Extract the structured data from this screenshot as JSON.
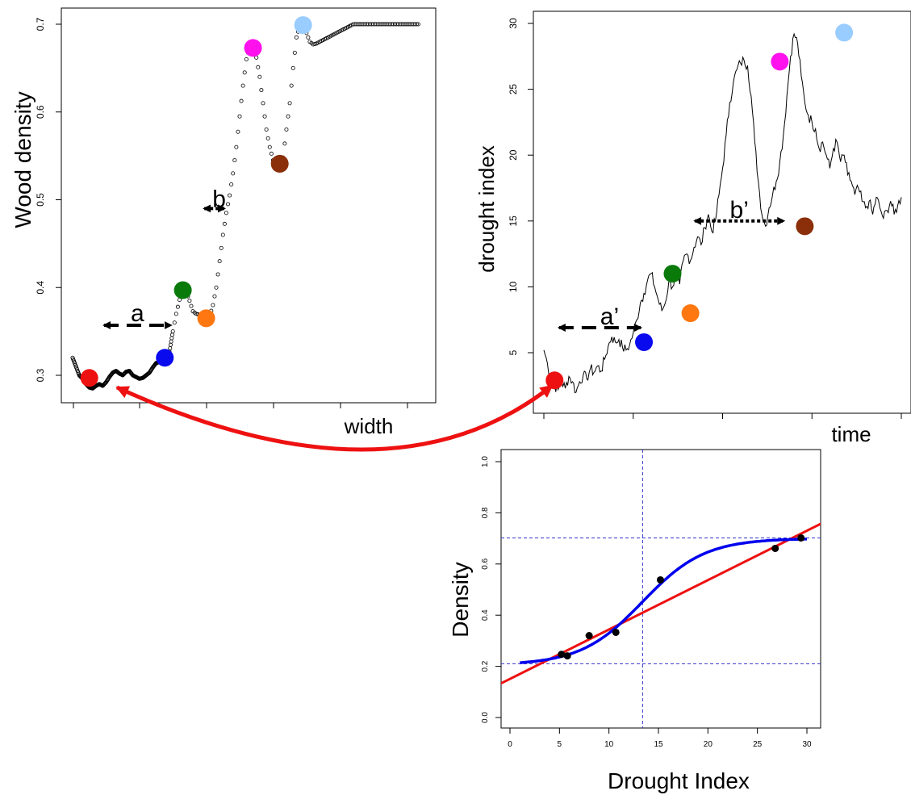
{
  "chart_data": [
    {
      "id": "wood",
      "type": "scatter",
      "ylabel": "Wood density",
      "xlabel": "width",
      "ylim": [
        0.265,
        0.715
      ],
      "yticks": [
        0.3,
        0.4,
        0.5,
        0.6,
        0.7
      ],
      "ytick_labels": [
        "0.3",
        "0.4",
        "0.5",
        "0.6",
        "0.7"
      ],
      "xlim": [
        0,
        100
      ],
      "xticks": [
        5,
        25,
        45,
        65,
        85,
        100
      ],
      "x": [
        0,
        1,
        2,
        3,
        4,
        5,
        6,
        7,
        8,
        9,
        10,
        11,
        12,
        13,
        14,
        15,
        16,
        17,
        18,
        19,
        20,
        21,
        22,
        23,
        24,
        25,
        26,
        27,
        28,
        29,
        30,
        31,
        32,
        33,
        34,
        35,
        36,
        37,
        38,
        39,
        40,
        41,
        42,
        43,
        44,
        45,
        46,
        47,
        48,
        49,
        50,
        51,
        52,
        53,
        54,
        55,
        56,
        57,
        58,
        59,
        60,
        61,
        62,
        63,
        64,
        65,
        66,
        67,
        68,
        69,
        70,
        71,
        72,
        73,
        74,
        75,
        76,
        77,
        78,
        79,
        80,
        81,
        82,
        83,
        84,
        85,
        86,
        87,
        88,
        89,
        90,
        91,
        92,
        93,
        94,
        95,
        96,
        97,
        98,
        99,
        100,
        101,
        102,
        103,
        104
      ],
      "y": [
        0.32,
        0.31,
        0.3,
        0.296,
        0.29,
        0.286,
        0.285,
        0.288,
        0.29,
        0.288,
        0.292,
        0.298,
        0.303,
        0.305,
        0.302,
        0.3,
        0.304,
        0.305,
        0.3,
        0.298,
        0.296,
        0.297,
        0.3,
        0.303,
        0.309,
        0.314,
        0.315,
        0.318,
        0.32,
        0.327,
        0.35,
        0.37,
        0.386,
        0.396,
        0.395,
        0.385,
        0.373,
        0.37,
        0.369,
        0.366,
        0.365,
        0.367,
        0.38,
        0.4,
        0.43,
        0.46,
        0.485,
        0.505,
        0.53,
        0.56,
        0.595,
        0.63,
        0.66,
        0.675,
        0.672,
        0.662,
        0.64,
        0.61,
        0.58,
        0.56,
        0.545,
        0.541,
        0.541,
        0.548,
        0.58,
        0.61,
        0.65,
        0.685,
        0.698,
        0.7,
        0.69,
        0.68,
        0.677,
        0.678,
        0.68,
        0.682,
        0.684,
        0.686,
        0.688,
        0.69,
        0.692,
        0.694,
        0.696,
        0.698,
        0.7,
        0.7,
        0.7,
        0.7,
        0.7,
        0.7,
        0.7,
        0.7,
        0.7,
        0.7,
        0.7,
        0.7,
        0.7,
        0.7,
        0.7,
        0.7,
        0.7,
        0.7,
        0.7,
        0.7,
        0.7
      ],
      "highlights": [
        {
          "color": "#ee1111",
          "x": 5,
          "y": 0.297
        },
        {
          "color": "#0a0aee",
          "x": 27.6,
          "y": 0.32
        },
        {
          "color": "#0a7a0a",
          "x": 33,
          "y": 0.397
        },
        {
          "color": "#ff7711",
          "x": 40,
          "y": 0.365
        },
        {
          "color": "#ff11ee",
          "x": 54,
          "y": 0.673
        },
        {
          "color": "#8b2f0a",
          "x": 62,
          "y": 0.541
        },
        {
          "color": "#99ccff",
          "x": 69,
          "y": 0.699
        }
      ],
      "annotations": [
        {
          "text": "a",
          "kind": "dashed",
          "x_from": 7,
          "x_to": 27,
          "y": 0.357
        },
        {
          "text": "b",
          "kind": "dotted",
          "x_from": 37,
          "x_to": 43,
          "y": 0.49
        }
      ]
    },
    {
      "id": "drought",
      "type": "line",
      "ylabel": "drought index",
      "xlabel": "time",
      "ylim": [
        0,
        31
      ],
      "yticks": [
        5,
        10,
        15,
        20,
        25,
        30
      ],
      "ytick_labels": [
        "5",
        "10",
        "15",
        "20",
        "25",
        "30"
      ],
      "xlim": [
        0,
        100
      ],
      "xticks": [
        0,
        25,
        50,
        75,
        100
      ],
      "x": [
        0,
        1,
        2,
        3,
        4,
        5,
        6,
        7,
        8,
        9,
        10,
        11,
        12,
        13,
        14,
        15,
        16,
        17,
        18,
        19,
        20,
        21,
        22,
        23,
        24,
        25,
        26,
        27,
        28,
        29,
        30,
        31,
        32,
        33,
        34,
        35,
        36,
        37,
        38,
        39,
        40,
        41,
        42,
        43,
        44,
        45,
        46,
        47,
        48,
        49,
        50,
        51,
        52,
        53,
        54,
        55,
        56,
        57,
        58,
        59,
        60,
        61,
        62,
        63,
        64,
        65,
        66,
        67,
        68,
        69,
        70,
        71,
        72,
        73,
        74,
        75,
        76,
        77,
        78,
        79,
        80,
        81,
        82,
        83,
        84,
        85,
        86,
        87,
        88,
        89,
        90,
        91,
        92,
        93,
        94,
        95,
        96,
        97,
        98,
        99,
        100
      ],
      "y": [
        5.2,
        4.2,
        3.0,
        2.5,
        2.2,
        2.8,
        2.3,
        3.2,
        2.8,
        2.0,
        2.8,
        3.3,
        3.0,
        3.8,
        3.5,
        4.0,
        3.6,
        4.5,
        5.5,
        6.2,
        5.8,
        6.0,
        5.4,
        5.2,
        5.6,
        6.5,
        7.5,
        8.8,
        9.5,
        10.5,
        11.0,
        10.0,
        9.0,
        8.2,
        8.8,
        10.5,
        10.0,
        11.0,
        10.2,
        12.0,
        12.5,
        12.0,
        13.0,
        13.8,
        13.2,
        14.5,
        15.5,
        14.2,
        15.0,
        17.0,
        19.0,
        21.5,
        24.0,
        25.5,
        26.5,
        27.0,
        27.2,
        26.8,
        24.5,
        21.0,
        18.0,
        15.5,
        14.6,
        16.0,
        17.0,
        18.0,
        19.5,
        21.5,
        24.5,
        27.5,
        29.2,
        28.5,
        26.0,
        24.0,
        23.0,
        22.5,
        22.0,
        20.5,
        21.0,
        20.0,
        19.0,
        20.5,
        21.0,
        19.5,
        20.0,
        18.5,
        18.0,
        17.0,
        17.5,
        16.5,
        16.0,
        16.5,
        15.5,
        16.8,
        16.0,
        15.2,
        15.8,
        16.5,
        15.5,
        16.2,
        16.8
      ],
      "highlights": [
        {
          "color": "#ee1111",
          "x": 3,
          "y": 2.9
        },
        {
          "color": "#0a0aee",
          "x": 28,
          "y": 5.8
        },
        {
          "color": "#0a7a0a",
          "x": 36,
          "y": 11.0
        },
        {
          "color": "#ff7711",
          "x": 41,
          "y": 8.0
        },
        {
          "color": "#ff11ee",
          "x": 66,
          "y": 27.1
        },
        {
          "color": "#8b2f0a",
          "x": 73,
          "y": 14.6
        },
        {
          "color": "#99ccff",
          "x": 84,
          "y": 29.3
        }
      ],
      "annotations": [
        {
          "text": "a’",
          "kind": "dashed",
          "x_from": 2,
          "x_to": 28,
          "y": 6.9
        },
        {
          "text": "b’",
          "kind": "dotted",
          "x_from": 40,
          "x_to": 68,
          "y": 15.0
        }
      ]
    },
    {
      "id": "fit",
      "type": "scatter",
      "xlabel": "Drought Index",
      "ylabel": "Density",
      "xlim": [
        -1,
        31.5
      ],
      "ylim": [
        -0.04,
        1.04
      ],
      "xticks": [
        0,
        5,
        10,
        15,
        20,
        25,
        30
      ],
      "xtick_labels": [
        "0",
        "5",
        "10",
        "15",
        "20",
        "25",
        "30"
      ],
      "yticks": [
        0.0,
        0.2,
        0.4,
        0.6,
        0.8,
        1.0
      ],
      "ytick_labels": [
        "0.0",
        "0.2",
        "0.4",
        "0.6",
        "0.8",
        "1.0"
      ],
      "points": [
        {
          "x": 5.2,
          "y": 0.247
        },
        {
          "x": 5.8,
          "y": 0.241
        },
        {
          "x": 8.0,
          "y": 0.32
        },
        {
          "x": 10.7,
          "y": 0.333
        },
        {
          "x": 15.2,
          "y": 0.538
        },
        {
          "x": 26.8,
          "y": 0.661
        },
        {
          "x": 29.4,
          "y": 0.702
        }
      ],
      "linear_fit": {
        "intercept": 0.151,
        "slope": 0.0193,
        "color": "#ee1111"
      },
      "sigmoid_fit": {
        "lower": 0.205,
        "upper": 0.7,
        "midpoint": 13.4,
        "rate": 0.32,
        "x_range": [
          1,
          30
        ],
        "color": "#0000ee"
      },
      "reference_lines": {
        "vertical_x": 13.4,
        "horizontal_y": [
          0.21,
          0.702
        ],
        "color": "#3333cc"
      }
    }
  ],
  "connector": {
    "color": "#ee1111",
    "from": "red point of Wood density",
    "to": "red point of drought index"
  }
}
